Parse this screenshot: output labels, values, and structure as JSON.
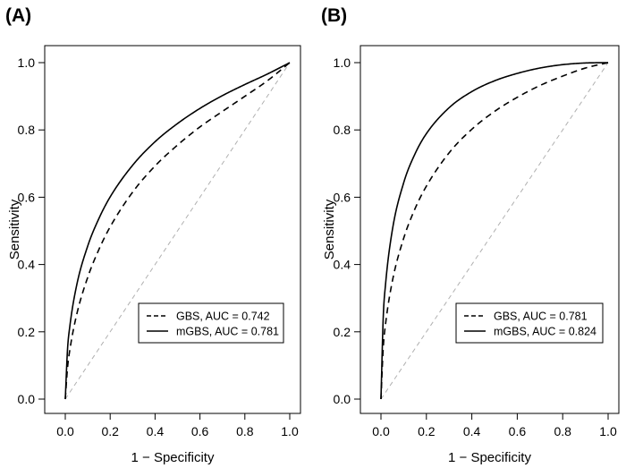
{
  "chart_data": [
    {
      "type": "line",
      "panel_label": "(A)",
      "xlabel": "1 − Specificity",
      "ylabel": "Sensitivity",
      "xlim": [
        0,
        1
      ],
      "ylim": [
        0,
        1
      ],
      "xticks": [
        "0.0",
        "0.2",
        "0.4",
        "0.6",
        "0.8",
        "1.0"
      ],
      "yticks": [
        "0.0",
        "0.2",
        "0.4",
        "0.6",
        "0.8",
        "1.0"
      ],
      "legend_position": "bottom-right",
      "reference_line": {
        "x": [
          0,
          1
        ],
        "y": [
          0,
          1
        ],
        "style": "dashed",
        "color": "#b0b0b0"
      },
      "series": [
        {
          "name": "GBS, AUC = 0.742",
          "style": "dashed",
          "auc": 0.742,
          "x": [
            0,
            0.01,
            0.02,
            0.05,
            0.1,
            0.15,
            0.2,
            0.3,
            0.4,
            0.5,
            0.6,
            0.7,
            0.8,
            0.9,
            1.0
          ],
          "y": [
            0,
            0.093,
            0.145,
            0.249,
            0.362,
            0.445,
            0.512,
            0.615,
            0.693,
            0.755,
            0.809,
            0.855,
            0.9,
            0.946,
            1.0
          ]
        },
        {
          "name": "mGBS, AUC = 0.781",
          "style": "solid",
          "auc": 0.781,
          "x": [
            0,
            0.01,
            0.02,
            0.05,
            0.1,
            0.15,
            0.2,
            0.3,
            0.4,
            0.5,
            0.6,
            0.7,
            0.8,
            0.9,
            1.0
          ],
          "y": [
            0,
            0.148,
            0.215,
            0.336,
            0.455,
            0.537,
            0.601,
            0.695,
            0.765,
            0.819,
            0.864,
            0.902,
            0.935,
            0.966,
            1.0
          ]
        }
      ]
    },
    {
      "type": "line",
      "panel_label": "(B)",
      "xlabel": "1 − Specificity",
      "ylabel": "Sensitivity",
      "xlim": [
        0,
        1
      ],
      "ylim": [
        0,
        1
      ],
      "xticks": [
        "0.0",
        "0.2",
        "0.4",
        "0.6",
        "0.8",
        "1.0"
      ],
      "yticks": [
        "0.0",
        "0.2",
        "0.4",
        "0.6",
        "0.8",
        "1.0"
      ],
      "legend_position": "bottom-right",
      "reference_line": {
        "x": [
          0,
          1
        ],
        "y": [
          0,
          1
        ],
        "style": "dashed",
        "color": "#b0b0b0"
      },
      "series": [
        {
          "name": "GBS, AUC = 0.781",
          "style": "dashed",
          "auc": 0.781,
          "x": [
            0,
            0.01,
            0.02,
            0.05,
            0.1,
            0.15,
            0.2,
            0.3,
            0.4,
            0.5,
            0.6,
            0.7,
            0.8,
            0.9,
            1.0
          ],
          "y": [
            0,
            0.152,
            0.222,
            0.35,
            0.478,
            0.566,
            0.633,
            0.732,
            0.802,
            0.855,
            0.897,
            0.932,
            0.96,
            0.984,
            1.0
          ]
        },
        {
          "name": "mGBS, AUC = 0.824",
          "style": "solid",
          "auc": 0.824,
          "x": [
            0,
            0.01,
            0.02,
            0.05,
            0.1,
            0.15,
            0.2,
            0.3,
            0.4,
            0.5,
            0.6,
            0.7,
            0.8,
            0.9,
            1.0
          ],
          "y": [
            0,
            0.243,
            0.34,
            0.502,
            0.643,
            0.729,
            0.789,
            0.866,
            0.914,
            0.946,
            0.968,
            0.984,
            0.994,
            0.999,
            1.0
          ]
        }
      ]
    }
  ]
}
